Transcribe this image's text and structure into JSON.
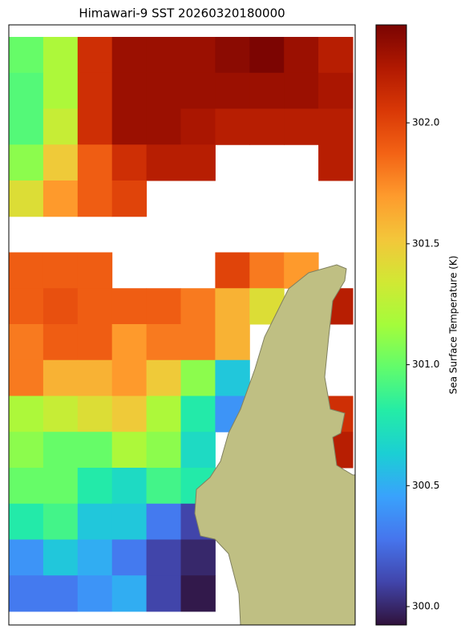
{
  "chart_data": {
    "type": "heatmap",
    "title": "Himawari-9 SST 20260320180000",
    "colorbar_label": "Sea Surface Temperature (K)",
    "clim": [
      299.924,
      302.405
    ],
    "cticks": [
      {
        "value": 300,
        "label": "300.0"
      },
      {
        "value": 300.5,
        "label": "300.5"
      },
      {
        "value": 301,
        "label": "301.0"
      },
      {
        "value": 301.5,
        "label": "301.5"
      },
      {
        "value": 302,
        "label": "302.0"
      }
    ],
    "colormap": [
      "#30123b",
      "#4145ab",
      "#4675ed",
      "#39a2fc",
      "#1bcfd4",
      "#24eca6",
      "#61fc6c",
      "#a4fc3b",
      "#d1e834",
      "#f3c63a",
      "#fe9b2d",
      "#f36315",
      "#d93806",
      "#b11901",
      "#7a0402"
    ],
    "land_color": "#bfbf83",
    "z": [
      [
        301.0,
        301.2,
        302.1,
        302.3,
        302.3,
        302.3,
        302.35,
        302.4,
        302.3,
        302.2
      ],
      [
        300.95,
        301.2,
        302.1,
        302.3,
        302.3,
        302.3,
        302.3,
        302.3,
        302.3,
        302.25
      ],
      [
        300.95,
        301.3,
        302.1,
        302.3,
        302.3,
        302.25,
        302.2,
        302.2,
        302.2,
        302.2
      ],
      [
        301.1,
        301.5,
        301.9,
        302.1,
        302.2,
        302.2,
        null,
        null,
        null,
        302.2
      ],
      [
        301.4,
        301.7,
        301.9,
        302.0,
        null,
        null,
        null,
        null,
        null,
        null
      ],
      [
        null,
        null,
        null,
        null,
        null,
        null,
        null,
        null,
        null,
        null
      ],
      [
        301.9,
        301.9,
        301.9,
        null,
        null,
        null,
        302.0,
        301.8,
        301.7,
        null
      ],
      [
        301.9,
        301.95,
        301.9,
        301.9,
        301.9,
        301.8,
        301.6,
        301.4,
        null,
        302.2
      ],
      [
        301.8,
        301.9,
        301.9,
        301.7,
        301.8,
        301.8,
        301.6,
        null,
        null,
        null
      ],
      [
        301.8,
        301.6,
        301.6,
        301.7,
        301.5,
        301.1,
        300.6,
        null,
        null,
        null
      ],
      [
        301.2,
        301.3,
        301.4,
        301.5,
        301.2,
        300.8,
        300.4,
        null,
        null,
        302.1
      ],
      [
        301.1,
        301.0,
        301.0,
        301.2,
        301.1,
        300.7,
        null,
        null,
        null,
        302.2
      ],
      [
        301.0,
        301.0,
        300.8,
        300.7,
        300.9,
        300.8,
        null,
        null,
        null,
        null
      ],
      [
        300.8,
        300.9,
        300.6,
        300.6,
        300.3,
        300.1,
        null,
        null,
        null,
        null
      ],
      [
        300.4,
        300.6,
        300.5,
        300.3,
        300.1,
        300.0,
        null,
        null,
        null,
        null
      ],
      [
        300.3,
        300.3,
        300.4,
        300.5,
        300.1,
        299.95,
        null,
        null,
        null,
        null
      ]
    ]
  }
}
